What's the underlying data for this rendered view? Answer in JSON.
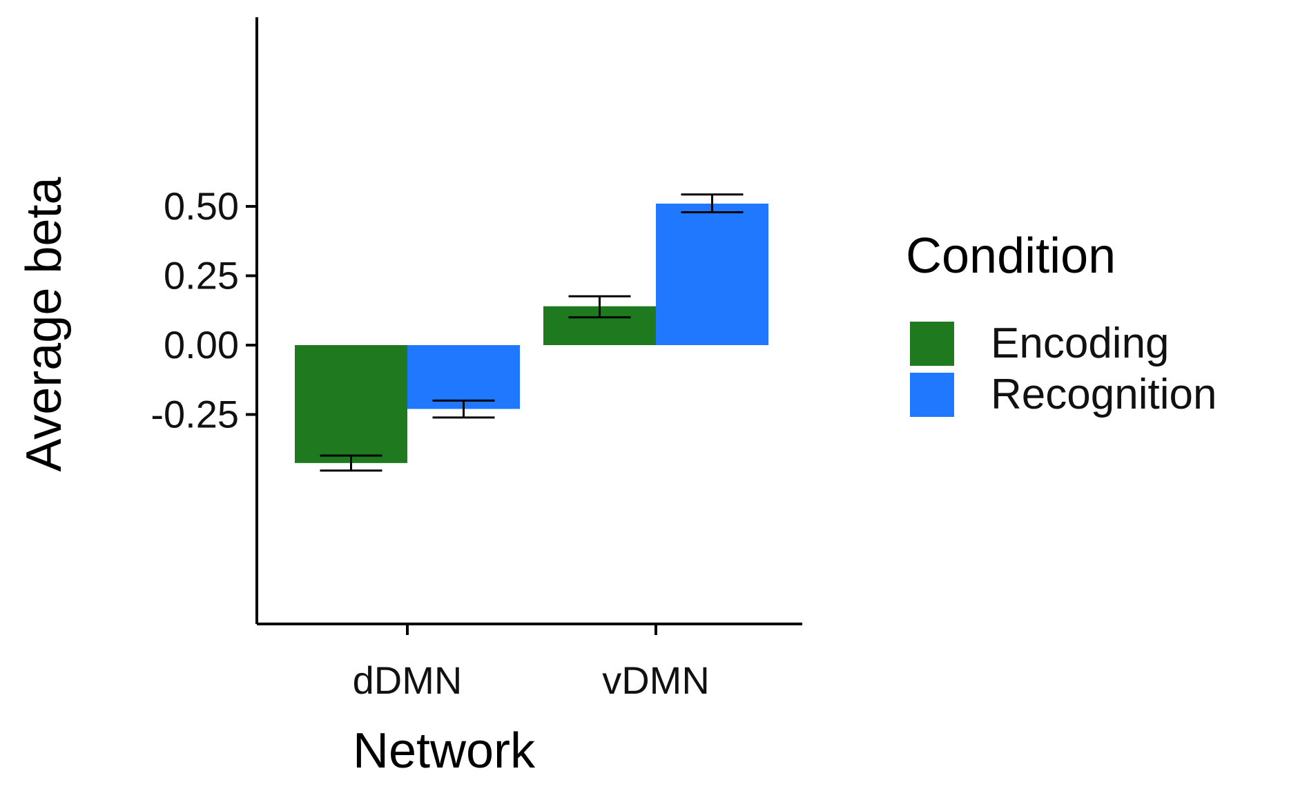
{
  "chart_data": {
    "type": "bar",
    "title": "",
    "xlabel": "Network",
    "ylabel": "Average beta",
    "categories": [
      "dDMN",
      "vDMN"
    ],
    "series": [
      {
        "name": "Encoding",
        "color": "#1f7a1f",
        "values": [
          -0.425,
          0.14
        ],
        "error_low": [
          -0.452,
          0.1
        ],
        "error_high": [
          -0.398,
          0.176
        ]
      },
      {
        "name": "Recognition",
        "color": "#1f78ff",
        "values": [
          -0.23,
          0.51
        ],
        "error_low": [
          -0.261,
          0.479
        ],
        "error_high": [
          -0.2,
          0.543
        ]
      }
    ],
    "ylim": [
      -0.5,
      0.6
    ],
    "yticks": [
      0.5,
      0.25,
      0.0,
      -0.25
    ],
    "ytick_labels": [
      "0.50",
      "0.25",
      "0.00",
      "-0.25"
    ],
    "grid": false,
    "legend": {
      "title": "Condition",
      "position": "right"
    }
  }
}
